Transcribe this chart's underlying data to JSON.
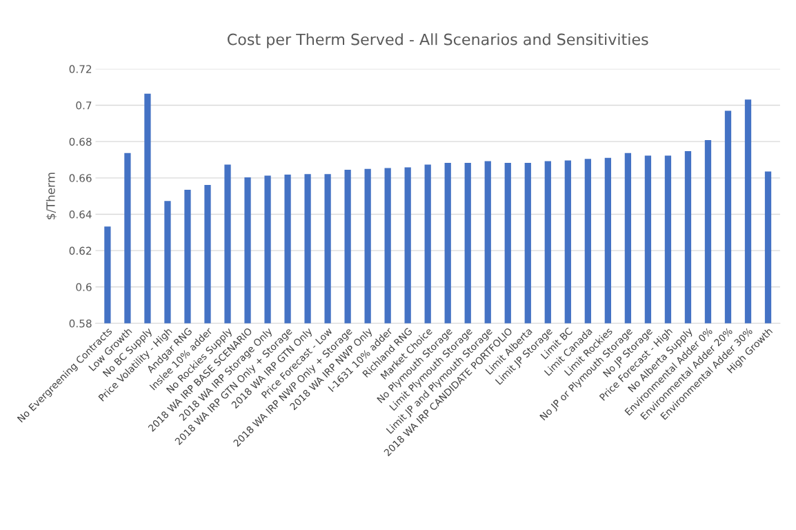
{
  "chart_data": {
    "type": "bar",
    "title": "Cost per Therm Served - All Scenarios and Sensitivities",
    "ylabel": "$/Therm",
    "categories": [
      "No Evergreening Contracts",
      "Low Growth",
      "No BC Supply",
      "Price Volatility - High",
      "Andgar RNG",
      "Inslee 10% adder",
      "No Rockies Supply",
      "2018 WA IRP BASE SCENARIO",
      "2018 WA IRP Storage Only",
      "2018 WA IRP GTN Only + Storage",
      "2018 WA IRP GTN Only",
      "Price Forecast - Low",
      "2018 WA IRP NWP Only + Storage",
      "2018 WA IRP NWP Only",
      "I-1631 10% adder",
      "Richland RNG",
      "Market Choice",
      "No Plymouth Storage",
      "Limit Plymouth Storage",
      "Limit JP and Plymouth Storage",
      "2018 WA IRP CANDIDATE PORTFOLIO",
      "Limit Alberta",
      "Limit JP Storage",
      "Limit BC",
      "Limit Canada",
      "Limit Rockies",
      "No JP or Plymouth Storage",
      "No JP Storage",
      "Price Forecast - High",
      "No Alberta Supply",
      "Environmental Adder 0%",
      "Environmental Adder 20%",
      "Environmental Adder 30%",
      "High Growth"
    ],
    "values": [
      0.6333,
      0.6737,
      0.7064,
      0.6473,
      0.6535,
      0.6561,
      0.6673,
      0.6603,
      0.6613,
      0.6618,
      0.6621,
      0.6621,
      0.6645,
      0.665,
      0.6654,
      0.6658,
      0.6673,
      0.6683,
      0.6683,
      0.6692,
      0.6683,
      0.6683,
      0.6692,
      0.6696,
      0.6705,
      0.671,
      0.6737,
      0.6723,
      0.6723,
      0.6747,
      0.6808,
      0.697,
      0.7031,
      0.6635
    ],
    "color": "#4472c4",
    "ylim": [
      0.58,
      0.72
    ],
    "yticks": [
      0.58,
      0.6,
      0.62,
      0.64,
      0.66,
      0.68,
      0.7,
      0.72
    ],
    "grid": "y"
  }
}
